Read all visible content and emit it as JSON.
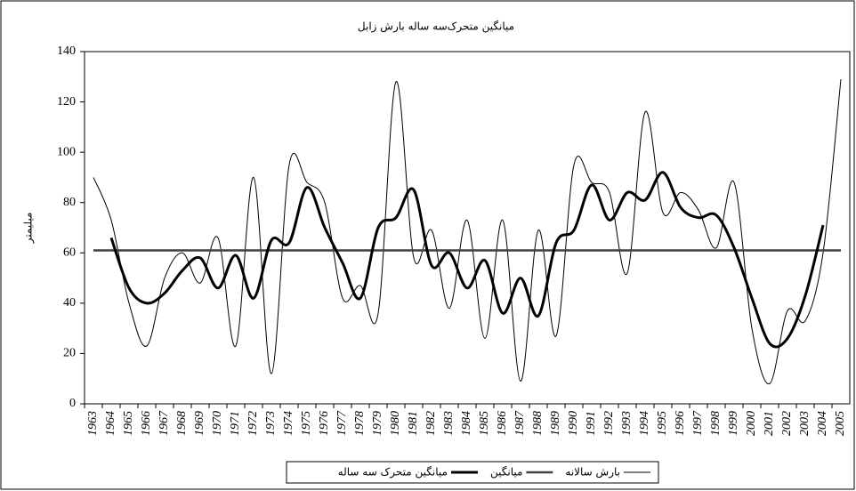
{
  "chart_data": {
    "type": "line",
    "title": "میانگین متحرک‌سه ساله بارش زابل",
    "y_label": "میلیمتر",
    "categories": [
      "1963",
      "1964",
      "1965",
      "1966",
      "1967",
      "1968",
      "1969",
      "1970",
      "1971",
      "1972",
      "1973",
      "1974",
      "1975",
      "1976",
      "1977",
      "1978",
      "1979",
      "1980",
      "1981",
      "1982",
      "1983",
      "1984",
      "1985",
      "1986",
      "1987",
      "1988",
      "1989",
      "1990",
      "1991",
      "1992",
      "1993",
      "1994",
      "1995",
      "1996",
      "1997",
      "1998",
      "1999",
      "2000",
      "2001",
      "2002",
      "2003",
      "2004",
      "2005"
    ],
    "series": [
      {
        "name": "بارش سالانه",
        "color": "#000000",
        "width": 1,
        "values": [
          90,
          73,
          40,
          23,
          50,
          60,
          48,
          66,
          23,
          90,
          12,
          95,
          88,
          80,
          42,
          47,
          36,
          128,
          58,
          69,
          38,
          73,
          26,
          73,
          9,
          69,
          27,
          95,
          88,
          84,
          52,
          116,
          76,
          84,
          77,
          62,
          88,
          30,
          8,
          37,
          33,
          60,
          129
        ]
      },
      {
        "name": "میانگین",
        "color": "#404040",
        "width": 2.5,
        "values": [
          61,
          61,
          61,
          61,
          61,
          61,
          61,
          61,
          61,
          61,
          61,
          61,
          61,
          61,
          61,
          61,
          61,
          61,
          61,
          61,
          61,
          61,
          61,
          61,
          61,
          61,
          61,
          61,
          61,
          61,
          61,
          61,
          61,
          61,
          61,
          61,
          61,
          61,
          61,
          61,
          61,
          61,
          61
        ]
      },
      {
        "name": "میانگین متحرک سه ساله",
        "color": "#000000",
        "width": 3,
        "values": [
          null,
          66,
          46,
          40,
          44,
          53,
          58,
          46,
          59,
          42,
          65,
          64,
          86,
          70,
          56,
          42,
          70,
          74,
          85,
          55,
          60,
          46,
          57,
          36,
          50,
          35,
          64,
          69,
          87,
          73,
          84,
          81,
          92,
          78,
          74,
          75,
          62,
          42,
          24,
          26,
          43,
          71,
          null
        ]
      }
    ],
    "ylim": [
      0,
      140
    ],
    "yticks": [
      0,
      20,
      40,
      60,
      80,
      100,
      120,
      140
    ],
    "grid": false
  }
}
